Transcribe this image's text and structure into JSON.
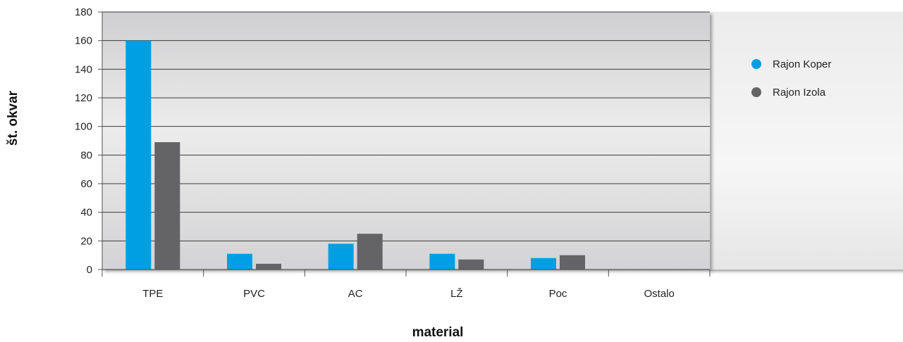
{
  "chart_data": {
    "type": "bar",
    "title": "",
    "xlabel": "material",
    "ylabel": "št. okvar",
    "categories": [
      "TPE",
      "PVC",
      "AC",
      "LŽ",
      "Poc",
      "Ostalo"
    ],
    "series": [
      {
        "name": "Rajon Koper",
        "color": "#009fe3",
        "values": [
          160,
          11,
          18,
          11,
          8,
          0
        ]
      },
      {
        "name": "Rajon Izola",
        "color": "#646466",
        "values": [
          89,
          4,
          25,
          7,
          10,
          0
        ]
      }
    ],
    "ylim": [
      0,
      180
    ],
    "yticks": [
      0,
      20,
      40,
      60,
      80,
      100,
      120,
      140,
      160,
      180
    ],
    "grid": true,
    "legend_position": "right"
  }
}
